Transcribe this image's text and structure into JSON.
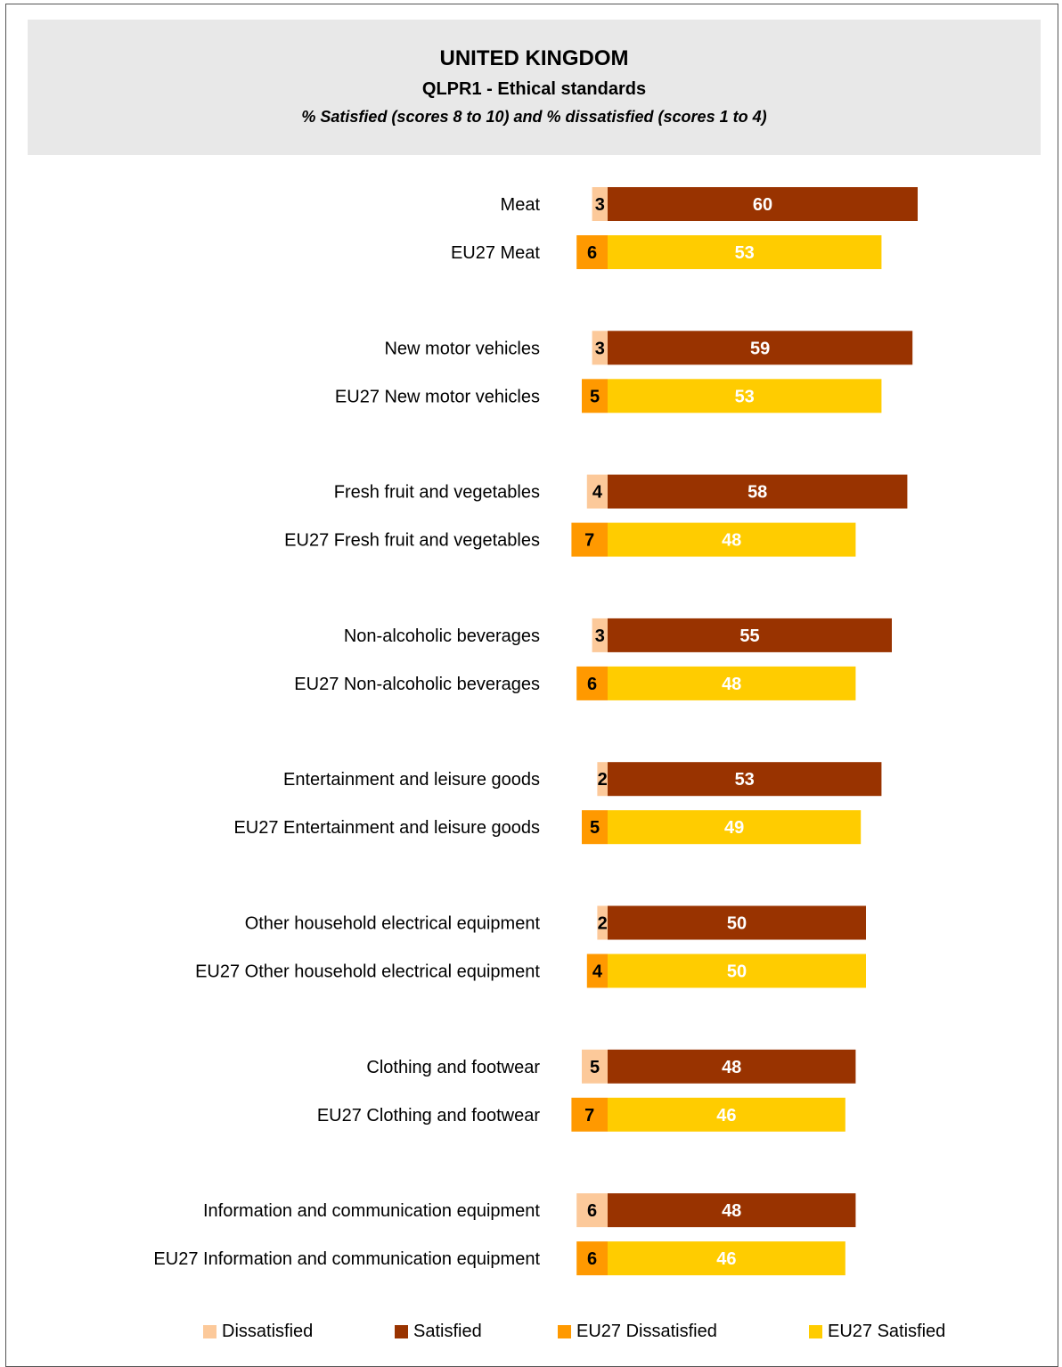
{
  "header": {
    "title": "UNITED KINGDOM",
    "subtitle": "QLPR1 - Ethical standards",
    "note": "%  Satisfied (scores 8 to 10) and % dissatisfied (scores 1 to 4)"
  },
  "colors": {
    "dissatisfied": "#fcc99a",
    "satisfied": "#993300",
    "eu27_dissatisfied": "#ff9900",
    "eu27_satisfied": "#ffcc00",
    "header_bg": "#e8e8e8"
  },
  "legend": {
    "dissatisfied": "Dissatisfied",
    "satisfied": "Satisfied",
    "eu27_dissatisfied": "EU27 Dissatisfied",
    "eu27_satisfied": "EU27 Satisfied"
  },
  "chart_data": {
    "type": "bar",
    "orientation": "horizontal",
    "stacked": "diverging",
    "grid": false,
    "legend_position": "bottom",
    "categories": [
      "Meat",
      "EU27 Meat",
      "New motor vehicles",
      "EU27 New motor vehicles",
      "Fresh fruit and vegetables",
      "EU27 Fresh fruit and vegetables",
      "Non-alcoholic beverages",
      "EU27 Non-alcoholic beverages",
      "Entertainment and leisure goods",
      "EU27 Entertainment and leisure goods",
      "Other household electrical equipment",
      "EU27 Other household electrical equipment",
      "Clothing and footwear",
      "EU27 Clothing and footwear",
      "Information and communication equipment",
      "EU27 Information and communication equipment"
    ],
    "series": [
      {
        "name": "Dissatisfied",
        "values": [
          3,
          null,
          3,
          null,
          4,
          null,
          3,
          null,
          2,
          null,
          2,
          null,
          5,
          null,
          6,
          null
        ]
      },
      {
        "name": "Satisfied",
        "values": [
          60,
          null,
          59,
          null,
          58,
          null,
          55,
          null,
          53,
          null,
          50,
          null,
          48,
          null,
          48,
          null
        ]
      },
      {
        "name": "EU27 Dissatisfied",
        "values": [
          null,
          6,
          null,
          5,
          null,
          7,
          null,
          6,
          null,
          5,
          null,
          4,
          null,
          7,
          null,
          6
        ]
      },
      {
        "name": "EU27 Satisfied",
        "values": [
          null,
          53,
          null,
          53,
          null,
          48,
          null,
          48,
          null,
          49,
          null,
          50,
          null,
          46,
          null,
          46
        ]
      }
    ]
  }
}
